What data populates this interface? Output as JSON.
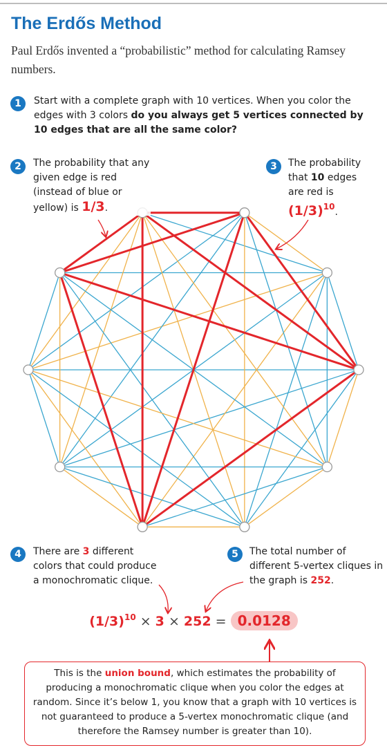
{
  "header": {
    "title": "The Erdős Method",
    "subtitle": "Paul Erdős invented a “probabilistic” method for calculating Ramsey numbers."
  },
  "steps": [
    {
      "number": "1",
      "parts": [
        {
          "text": "Start with a complete graph with 10 vertices. When you color the edges with 3 colors ",
          "style": "plain"
        },
        {
          "text": "do you always get 5 vertices connected by 10 edges that are all the same color?",
          "style": "bold"
        }
      ]
    },
    {
      "number": "2",
      "parts": [
        {
          "text": "The probability that any given edge is red (instead of blue or yellow) is ",
          "style": "plain"
        },
        {
          "text": "1/3",
          "style": "red-big"
        },
        {
          "text": ".",
          "style": "plain"
        }
      ]
    },
    {
      "number": "3",
      "parts": [
        {
          "text": "The probability that ",
          "style": "plain"
        },
        {
          "text": "10",
          "style": "bold"
        },
        {
          "text": " edges are red is ",
          "style": "plain"
        },
        {
          "text": "(1/3)",
          "style": "red-big"
        },
        {
          "text": "10",
          "style": "sup"
        },
        {
          "text": ".",
          "style": "plain"
        }
      ]
    },
    {
      "number": "4",
      "parts": [
        {
          "text": "There are ",
          "style": "plain"
        },
        {
          "text": "3",
          "style": "red"
        },
        {
          "text": " different colors that could produce a monochromatic clique.",
          "style": "plain"
        }
      ]
    },
    {
      "number": "5",
      "parts": [
        {
          "text": "The total number of different 5-vertex cliques in the graph is ",
          "style": "plain"
        },
        {
          "text": "252",
          "style": "red"
        },
        {
          "text": ".",
          "style": "plain"
        }
      ]
    }
  ],
  "formula": {
    "parts": [
      {
        "text": "(1/3)",
        "style": "red-big"
      },
      {
        "text": "10",
        "style": "sup"
      },
      {
        "text": " × ",
        "style": "plain"
      },
      {
        "text": "3",
        "style": "red-big"
      },
      {
        "text": " × ",
        "style": "plain"
      },
      {
        "text": "252",
        "style": "red-big"
      },
      {
        "text": " = ",
        "style": "plain"
      },
      {
        "text": "0.0128",
        "style": "highlight"
      }
    ]
  },
  "note": {
    "parts": [
      {
        "text": "This is the ",
        "style": "plain"
      },
      {
        "text": "union bound",
        "style": "red"
      },
      {
        "text": ", which estimates the probability of producing a monochromatic clique when you color the edges at random. Since it’s below 1, you know that a graph with 10 vertices is not guaranteed to produce a 5-vertex monochromatic clique (and therefore the Ramsey number is greater than 10).",
        "style": "plain"
      }
    ]
  }
}
